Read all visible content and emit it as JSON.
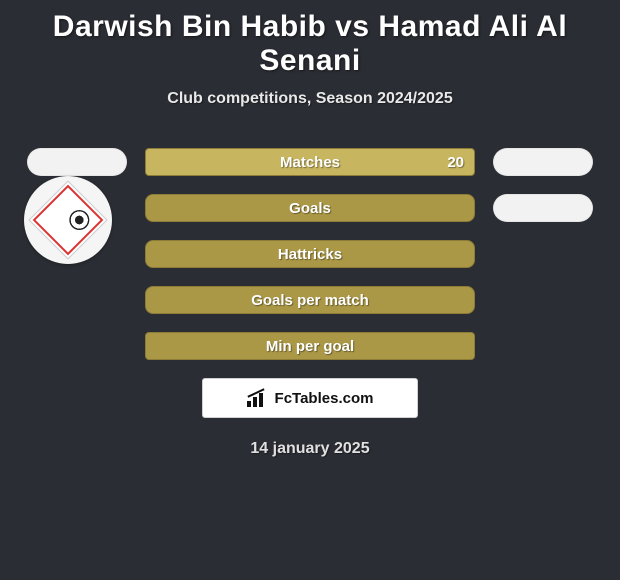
{
  "title": "Darwish Bin Habib vs Hamad Ali Al Senani",
  "subtitle": "Club competitions, Season 2024/2025",
  "date": "14 january 2025",
  "brand": "FcTables.com",
  "colors": {
    "background": "#2a2d33",
    "bar_primary": "#ab9847",
    "bar_light": "#c7b560",
    "bar_border": "#8c7c35",
    "pill_bg": "#f2f2f2",
    "text_light": "#ffffff",
    "brand_box_bg": "#ffffff"
  },
  "stats": [
    {
      "label": "Matches",
      "value_right": "20",
      "style": "square-light",
      "left_pill": true,
      "right_pill": true
    },
    {
      "label": "Goals",
      "value_right": "",
      "style": "round",
      "left_pill": false,
      "right_pill": true
    },
    {
      "label": "Hattricks",
      "value_right": "",
      "style": "round",
      "left_pill": false,
      "right_pill": false
    },
    {
      "label": "Goals per match",
      "value_right": "",
      "style": "round",
      "left_pill": false,
      "right_pill": false
    },
    {
      "label": "Min per goal",
      "value_right": "",
      "style": "square",
      "left_pill": false,
      "right_pill": false
    }
  ]
}
